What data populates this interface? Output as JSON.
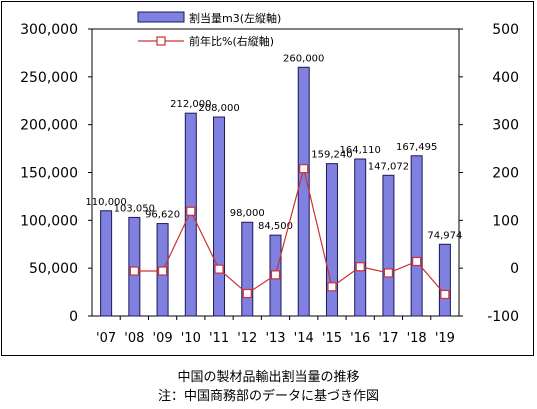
{
  "chart_data": {
    "type": "bar+line",
    "categories": [
      "'07",
      "'08",
      "'09",
      "'10",
      "'11",
      "'12",
      "'13",
      "'14",
      "'15",
      "'16",
      "'17",
      "'18",
      "'19"
    ],
    "series": [
      {
        "name": "割当量m3(左縦軸)",
        "axis": "left",
        "type": "bar",
        "color": "#8080e0",
        "values": [
          110000,
          103050,
          96620,
          212000,
          208000,
          98000,
          84500,
          260000,
          159240,
          164110,
          147072,
          167495,
          74974
        ],
        "labels": [
          "110,000",
          "103,050",
          "96,620",
          "212,000",
          "208,000",
          "98,000",
          "84,500",
          "260,000",
          "159,240",
          "164,110",
          "147,072",
          "167,495",
          "74,974"
        ]
      },
      {
        "name": "前年比%(右縦軸)",
        "axis": "right",
        "type": "line",
        "color": "#d03030",
        "values": [
          null,
          -6,
          -6,
          119,
          -2,
          -53,
          -14,
          208,
          -39,
          3,
          -10,
          14,
          -55
        ]
      }
    ],
    "y_left": {
      "ylim": [
        0,
        300000
      ],
      "ticks": [
        "0",
        "50,000",
        "100,000",
        "150,000",
        "200,000",
        "250,000",
        "300,000"
      ]
    },
    "y_right": {
      "ylim": [
        -100,
        500
      ],
      "ticks": [
        "-100",
        "0",
        "100",
        "200",
        "300",
        "400",
        "500"
      ]
    },
    "legend_position": "top"
  },
  "caption": {
    "line1": "中国の製材品輸出割当量の推移",
    "line2": "注：中国商務部のデータに基づき作図"
  }
}
